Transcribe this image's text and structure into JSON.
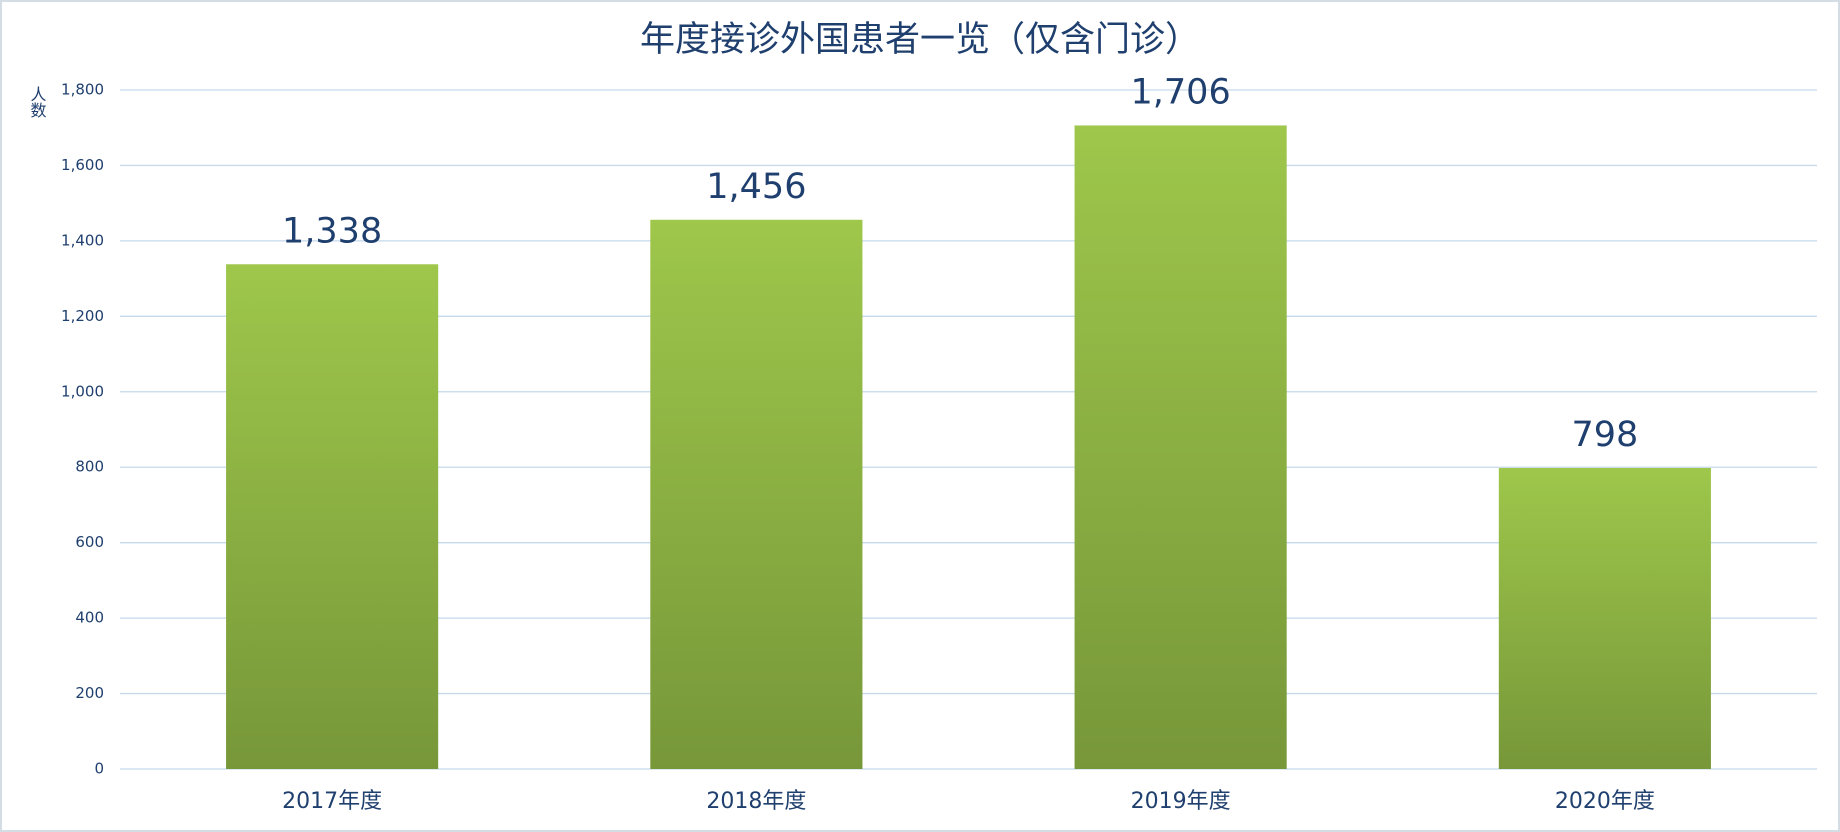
{
  "chart_data": {
    "type": "bar",
    "title": "年度接诊外国患者一览（仅含门诊）",
    "y_label": "人数",
    "categories": [
      "2017年度",
      "2018年度",
      "2019年度",
      "2020年度"
    ],
    "values": [
      1338,
      1456,
      1706,
      798
    ],
    "value_labels": [
      "1,338",
      "1,456",
      "1,706",
      "798"
    ],
    "color": "#8cb043",
    "ylim": [
      0,
      1800
    ],
    "yticks": [
      0,
      200,
      400,
      600,
      800,
      {
        "value": 1000,
        "label": "1,000"
      },
      {
        "value": 1200,
        "label": "1,200"
      },
      {
        "value": 1400,
        "label": "1,400"
      },
      {
        "value": 1600,
        "label": "1,600"
      },
      {
        "value": 1800,
        "label": "1,800"
      }
    ],
    "grid": true
  }
}
